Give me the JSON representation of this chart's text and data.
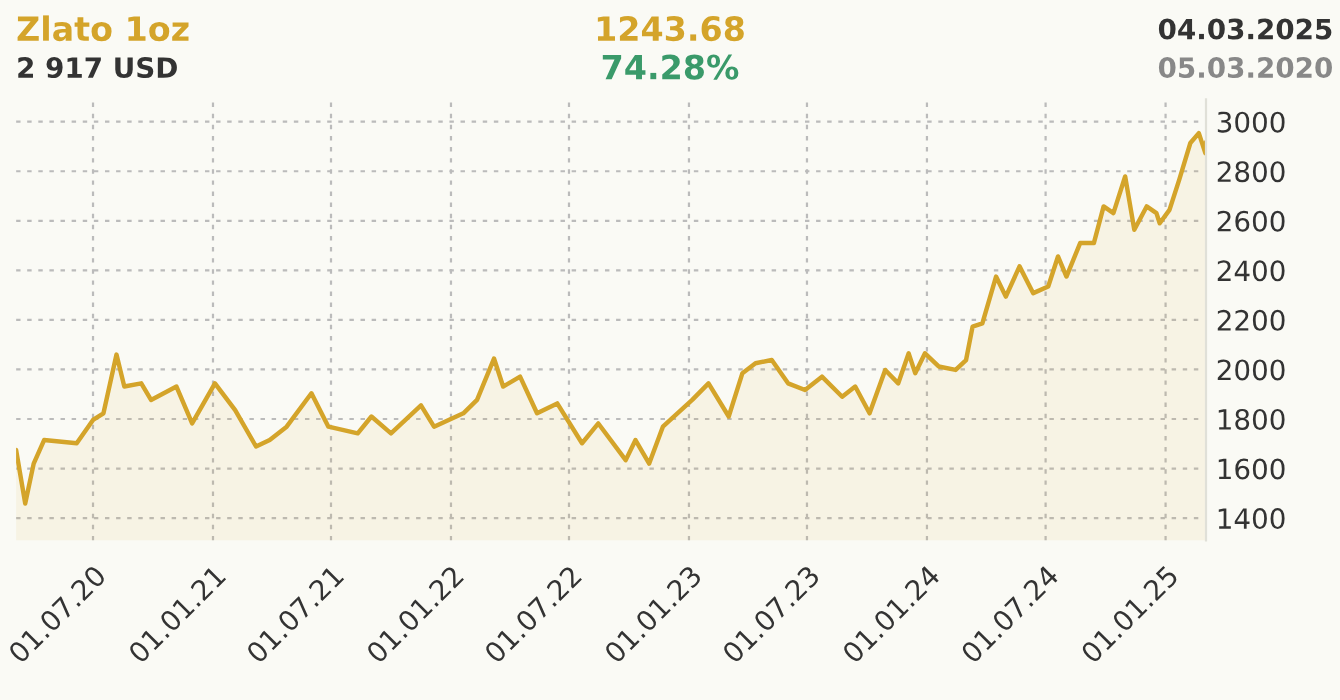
{
  "chart_data": {
    "type": "area",
    "title": "Zlato 1oz",
    "annotations": [
      "2 917 USD",
      "1243.68",
      "74.28%",
      "04.03.2025",
      "05.03.2020"
    ],
    "series": [
      {
        "color": "#d4a42a",
        "x": [
          "2020-03-05",
          "2020-03-19",
          "2020-04-01",
          "2020-04-17",
          "2020-06-06",
          "2020-07-01",
          "2020-07-17",
          "2020-08-06",
          "2020-08-18",
          "2020-09-13",
          "2020-09-28",
          "2020-11-06",
          "2020-11-30",
          "2021-01-04",
          "2021-02-04",
          "2021-03-08",
          "2021-03-29",
          "2021-04-24",
          "2021-06-01",
          "2021-06-27",
          "2021-08-11",
          "2021-09-01",
          "2021-10-01",
          "2021-11-16",
          "2021-12-06",
          "2022-01-20",
          "2022-02-10",
          "2022-03-08",
          "2022-03-22",
          "2022-04-17",
          "2022-05-13",
          "2022-06-13",
          "2022-07-21",
          "2022-08-15",
          "2022-09-26",
          "2022-10-11",
          "2022-11-01",
          "2022-11-22",
          "2023-01-06",
          "2023-01-31",
          "2023-03-03",
          "2023-03-24",
          "2023-04-13",
          "2023-05-08",
          "2023-06-02",
          "2023-06-28",
          "2023-07-24",
          "2023-08-24",
          "2023-09-13",
          "2023-10-05",
          "2023-10-29",
          "2023-11-18",
          "2023-12-04",
          "2023-12-14",
          "2023-12-29",
          "2024-01-19",
          "2024-02-14",
          "2024-03-01",
          "2024-03-11",
          "2024-03-26",
          "2024-04-16",
          "2024-05-01",
          "2024-05-22",
          "2024-06-12",
          "2024-07-05",
          "2024-07-20",
          "2024-08-02",
          "2024-08-23",
          "2024-09-13",
          "2024-09-28",
          "2024-10-13",
          "2024-10-31",
          "2024-11-14",
          "2024-12-03",
          "2024-12-18",
          "2024-12-23",
          "2025-01-07",
          "2025-01-22",
          "2025-02-08",
          "2025-02-21",
          "2025-03-03",
          "2025-03-04"
        ],
        "values": [
          1675,
          1459,
          1620,
          1715,
          1702,
          1796,
          1823,
          2060,
          1931,
          1944,
          1877,
          1931,
          1782,
          1944,
          1836,
          1689,
          1715,
          1769,
          1904,
          1769,
          1742,
          1810,
          1742,
          1855,
          1769,
          1823,
          1877,
          2044,
          1931,
          1971,
          1823,
          1863,
          1702,
          1782,
          1634,
          1715,
          1620,
          1769,
          1877,
          1944,
          1810,
          1985,
          2025,
          2038,
          1944,
          1917,
          1971,
          1890,
          1931,
          1823,
          1998,
          1944,
          2065,
          1985,
          2065,
          2012,
          1998,
          2038,
          2173,
          2186,
          2375,
          2294,
          2416,
          2308,
          2335,
          2456,
          2375,
          2510,
          2510,
          2658,
          2631,
          2779,
          2564,
          2658,
          2631,
          2590,
          2644,
          2766,
          2914,
          2954,
          2873,
          2917
        ]
      }
    ],
    "xlim": [
      "2020-03-05",
      "2025-03-04"
    ],
    "xticks": [
      {
        "value": "2020-07-01",
        "label": "01.07.20"
      },
      {
        "value": "2021-01-01",
        "label": "01.01.21"
      },
      {
        "value": "2021-07-01",
        "label": "01.07.21"
      },
      {
        "value": "2022-01-01",
        "label": "01.01.22"
      },
      {
        "value": "2022-07-01",
        "label": "01.07.22"
      },
      {
        "value": "2023-01-01",
        "label": "01.01.23"
      },
      {
        "value": "2023-07-01",
        "label": "01.07.23"
      },
      {
        "value": "2024-01-01",
        "label": "01.01.24"
      },
      {
        "value": "2024-07-01",
        "label": "01.07.24"
      },
      {
        "value": "2025-01-01",
        "label": "01.01.25"
      }
    ],
    "ylim": [
      1310,
      3090
    ],
    "yticks": [
      1400,
      1600,
      1800,
      2000,
      2200,
      2400,
      2600,
      2800,
      3000
    ],
    "grid": true,
    "line_style": "solid"
  }
}
